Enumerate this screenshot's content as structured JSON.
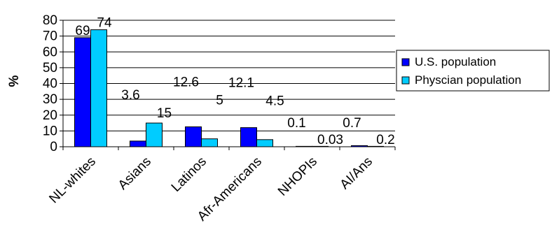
{
  "chart_data": {
    "type": "bar",
    "title": "",
    "xlabel": "",
    "ylabel": "%",
    "ylim": [
      0,
      80
    ],
    "yticks": [
      "0",
      "10",
      "20",
      "30",
      "40",
      "50",
      "60",
      "70",
      "80"
    ],
    "grid": true,
    "legend_position": "right",
    "categories": [
      "NL-whites",
      "Asians",
      "Latinos",
      "Afr-Americans",
      "NHOPIs",
      "AI/Ans"
    ],
    "series": [
      {
        "name": "U.S. population",
        "color": "#0000FF",
        "values": [
          69,
          3.6,
          12.6,
          12.1,
          0.1,
          0.7
        ],
        "labels": [
          "69",
          "3.6",
          "12.6",
          "12.1",
          "0.1",
          "0.7"
        ]
      },
      {
        "name": "Physcian population",
        "color": "#00CCFF",
        "values": [
          74,
          15,
          5,
          4.5,
          0.03,
          0.2
        ],
        "labels": [
          "74",
          "15",
          "5",
          "4.5",
          "0.03",
          "0.2"
        ]
      }
    ]
  }
}
